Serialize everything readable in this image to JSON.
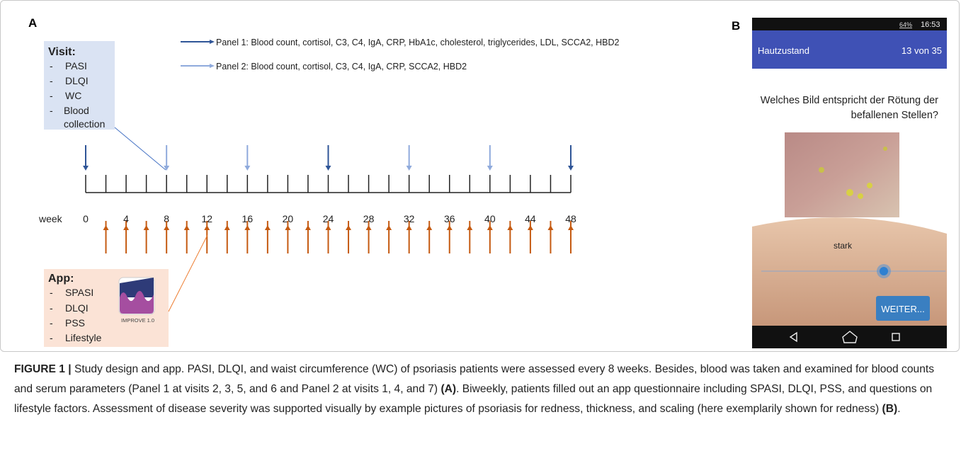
{
  "panel_a": {
    "label": "A",
    "legend": [
      {
        "text": "Panel 1: Blood count, cortisol, C3, C4, IgA, CRP, HbA1c, cholesterol, triglycerides, LDL, SCCA2, HBD2",
        "color": "#2f5597"
      },
      {
        "text": "Panel 2: Blood count, cortisol, C3, C4, IgA, CRP, SCCA2, HBD2",
        "color": "#8faadc"
      }
    ],
    "visit_box": {
      "title": "Visit:",
      "items": [
        "PASI",
        "DLQI",
        "WC",
        "Blood collection"
      ]
    },
    "week_axis": {
      "label": "week",
      "ticks": [
        0,
        4,
        8,
        12,
        16,
        20,
        24,
        28,
        32,
        36,
        40,
        44,
        48
      ]
    },
    "app_box": {
      "title": "App:",
      "items": [
        "SPASI",
        "DLQI",
        "PSS",
        "Lifestyle"
      ],
      "icon_label": "IMPROVE 1.0"
    }
  },
  "panel_b": {
    "label": "B",
    "status_bar": {
      "battery": "64%",
      "time": "16:53"
    },
    "header": {
      "title": "Hautzustand",
      "progress": "13 von 35"
    },
    "question": "Welches Bild entspricht der Rötung der befallenen Stellen?",
    "slider_label": "stark",
    "button": "WEITER..."
  },
  "caption": {
    "label": "FIGURE 1 |",
    "text_1": " Study design and app. PASI, DLQI, and waist circumference (WC) of psoriasis patients were assessed every 8 weeks. Besides, blood was taken and examined for blood counts and serum parameters (Panel 1 at visits 2, 3, 5, and 6 and Panel 2 at visits 1, 4, and 7) ",
    "ref_a": "(A)",
    "text_2": ". Biweekly, patients filled out an app questionnaire including SPASI, DLQI, PSS, and questions on lifestyle factors. Assessment of disease severity was supported visually by example pictures of psoriasis for redness, thickness, and scaling (here exemplarily shown for redness) ",
    "ref_b": "(B)",
    "text_3": "."
  }
}
